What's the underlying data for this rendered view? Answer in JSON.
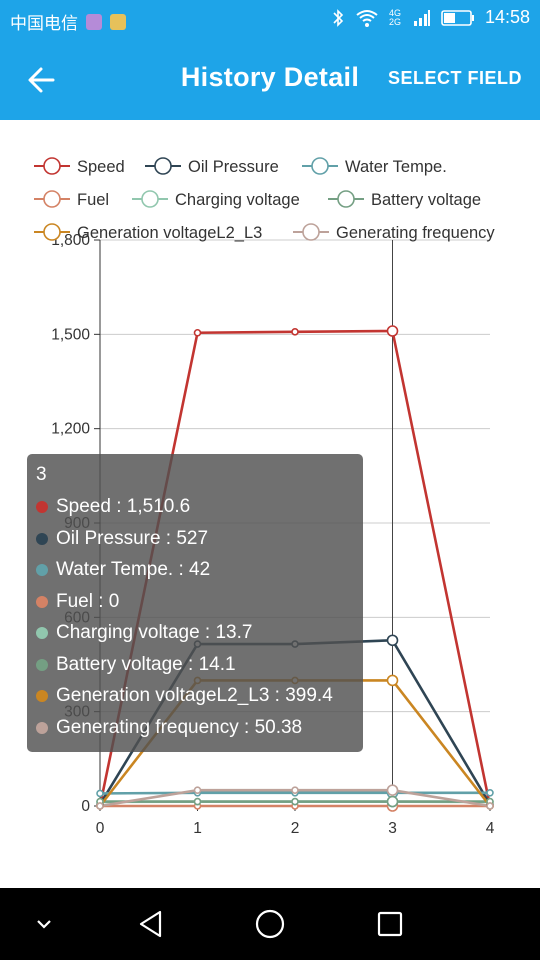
{
  "status_bar": {
    "carrier": "中国电信",
    "time": "14:58",
    "network": "4G 2G"
  },
  "app_bar": {
    "title": "History Detail",
    "action": "SELECT FIELD",
    "back_icon": "arrow-left-icon"
  },
  "chart_data": {
    "type": "line",
    "x": [
      0,
      1,
      2,
      3,
      4
    ],
    "xlim": [
      0,
      4
    ],
    "ylim": [
      0,
      1800
    ],
    "y_ticks": [
      "0",
      "300",
      "600",
      "900",
      "1,200",
      "1,500",
      "1,800"
    ],
    "x_ticks": [
      "0",
      "1",
      "2",
      "3",
      "4"
    ],
    "grid": true,
    "legend_position": "top",
    "series": [
      {
        "name": "Speed",
        "color": "#c23531",
        "values": [
          0,
          1505,
          1508,
          1510.6,
          0
        ]
      },
      {
        "name": "Oil Pressure",
        "color": "#2f4554",
        "values": [
          5,
          515,
          515,
          527,
          5
        ]
      },
      {
        "name": "Water Tempe.",
        "color": "#61a0a8",
        "values": [
          40,
          42,
          42,
          42,
          42
        ]
      },
      {
        "name": "Fuel",
        "color": "#d48265",
        "values": [
          0,
          0,
          0,
          0,
          0
        ]
      },
      {
        "name": "Charging voltage",
        "color": "#91c7ae",
        "values": [
          13,
          13.7,
          13.7,
          13.7,
          13
        ]
      },
      {
        "name": "Battery voltage",
        "color": "#749f83",
        "values": [
          14,
          14.1,
          14.1,
          14.1,
          14
        ]
      },
      {
        "name": "Generation voltageL2_L3",
        "color": "#ca8622",
        "values": [
          0,
          399.4,
          399.4,
          399.4,
          0
        ]
      },
      {
        "name": "Generating frequency",
        "color": "#bda29a",
        "values": [
          0,
          50.38,
          50.38,
          50.38,
          0
        ]
      }
    ],
    "highlight_index": 3
  },
  "tooltip": {
    "title": "3",
    "rows": [
      {
        "text": "Speed : 1,510.6",
        "color": "#c23531"
      },
      {
        "text": "Oil Pressure : 527",
        "color": "#2f4554"
      },
      {
        "text": "Water Tempe. : 42",
        "color": "#61a0a8"
      },
      {
        "text": "Fuel : 0",
        "color": "#d48265"
      },
      {
        "text": "Charging voltage : 13.7",
        "color": "#91c7ae"
      },
      {
        "text": "Battery voltage : 14.1",
        "color": "#749f83"
      },
      {
        "text": "Generation voltageL2_L3 : 399.4",
        "color": "#ca8622"
      },
      {
        "text": "Generating frequency : 50.38",
        "color": "#bda29a"
      }
    ]
  },
  "nav_bar": {
    "icons": [
      "chevron-down-icon",
      "back-triangle-icon",
      "home-circle-icon",
      "recents-square-icon"
    ]
  }
}
